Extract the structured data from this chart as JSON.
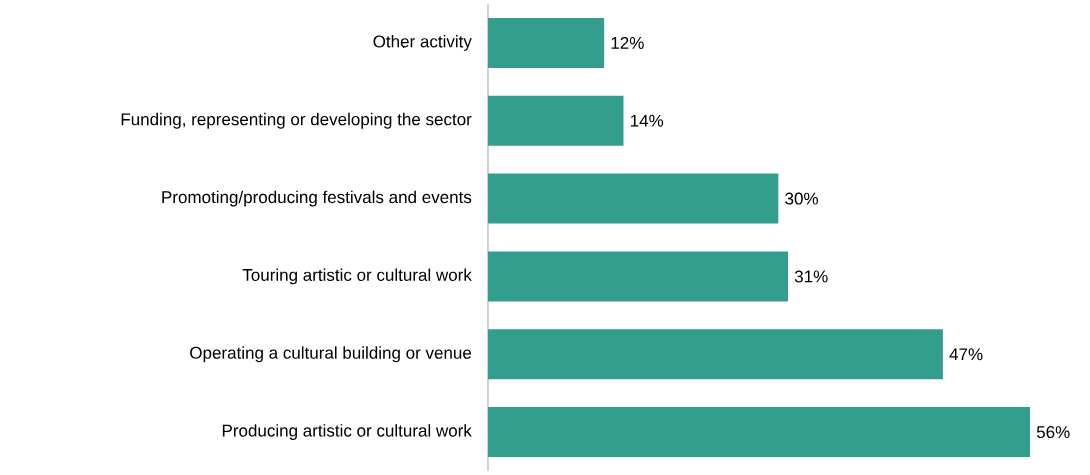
{
  "chart_data": {
    "type": "bar",
    "orientation": "horizontal",
    "color": "#339e8e",
    "categories": [
      "Other activity",
      "Funding, representing or developing the sector",
      "Promoting/producing festivals and events",
      "Touring artistic or cultural work",
      "Operating a cultural building or venue",
      "Producing artistic or cultural work"
    ],
    "values": [
      12,
      14,
      30,
      31,
      47,
      56
    ],
    "value_labels": [
      "12%",
      "14%",
      "30%",
      "31%",
      "47%",
      "56%"
    ]
  }
}
